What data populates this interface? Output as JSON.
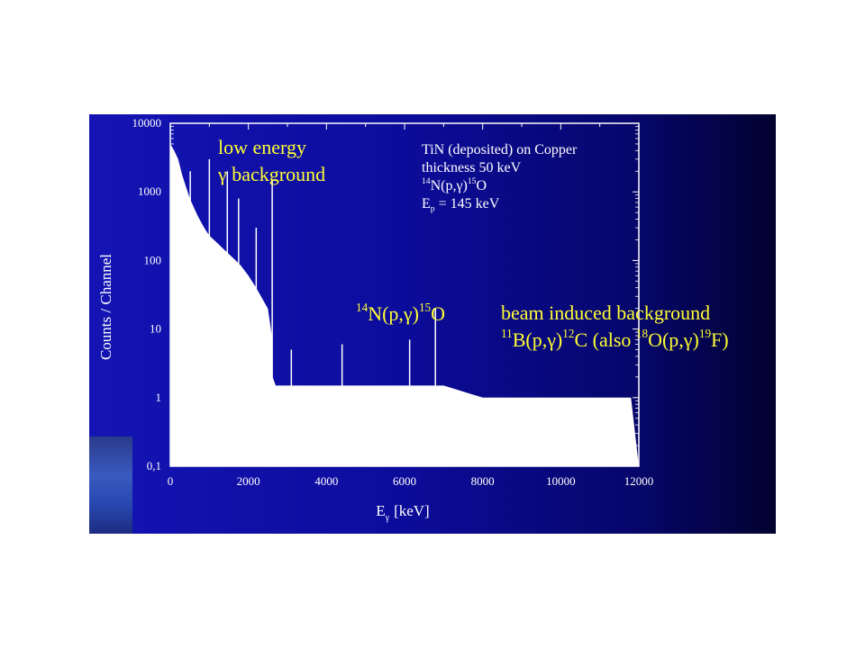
{
  "chart_data": {
    "type": "line",
    "x_axis": {
      "ticks": [
        0,
        2000,
        4000,
        6000,
        8000,
        10000,
        12000
      ],
      "tick_labels": [
        "0",
        "2000",
        "4000",
        "6000",
        "8000",
        "10000",
        "12000"
      ],
      "range": [
        0,
        12000
      ],
      "scale": "linear"
    },
    "y_axis": {
      "ticks": [
        0.1,
        1,
        10,
        100,
        1000,
        10000
      ],
      "tick_labels": [
        "0,1",
        "1",
        "10",
        "100",
        "1000",
        "10000"
      ],
      "range": [
        0.1,
        10000
      ],
      "scale": "log"
    },
    "xlabel_main": "E",
    "xlabel_sub": "γ",
    "xlabel_rest": "[keV]",
    "ylabel": "Counts / Channel",
    "grid": false,
    "series": [
      {
        "x": [
          0,
          100,
          200,
          300,
          400,
          500,
          600,
          700,
          800,
          900,
          1000,
          1200,
          1400,
          1600,
          1800,
          2000,
          2200,
          2400,
          2500,
          2600,
          2620,
          2700,
          3000,
          3500,
          4000,
          5000,
          6000,
          7000,
          8000,
          9000,
          10000,
          11000,
          11800,
          12000
        ],
        "y": [
          5000,
          4000,
          3000,
          1800,
          1200,
          800,
          600,
          450,
          350,
          280,
          230,
          180,
          140,
          110,
          85,
          60,
          40,
          25,
          20,
          8,
          2,
          1.5,
          1.5,
          1.5,
          1.5,
          1.5,
          1.5,
          1.5,
          1,
          1,
          1,
          1,
          1,
          0.1
        ]
      }
    ],
    "peaks": [
      {
        "x": 511,
        "y": 2000
      },
      {
        "x": 1000,
        "y": 3000
      },
      {
        "x": 1460,
        "y": 2000
      },
      {
        "x": 1750,
        "y": 800
      },
      {
        "x": 2200,
        "y": 300
      },
      {
        "x": 2610,
        "y": 1500
      },
      {
        "x": 3100,
        "y": 5
      },
      {
        "x": 4400,
        "y": 6
      },
      {
        "x": 6130,
        "y": 7
      },
      {
        "x": 6790,
        "y": 20
      }
    ]
  },
  "annotations": {
    "low_energy_line1": "low energy",
    "low_energy_gamma": "γ",
    "low_energy_line2": "background",
    "info_line1": "TiN (deposited) on Copper",
    "info_line2": "thickness 50 keV",
    "info_rx_pre": "14",
    "info_rx_mid": "N(p,γ)",
    "info_rx_post_sup": "15",
    "info_rx_post": "O",
    "info_ep_main": "E",
    "info_ep_sub": "p",
    "info_ep_rest": " = 145 keV",
    "peak_label_sup1": "14",
    "peak_label_mid": "N(p,γ)",
    "peak_label_sup2": "15",
    "peak_label_end": "O",
    "beam_line1": "beam induced background",
    "beam_sup1": "11",
    "beam_b": "B(p,γ)",
    "beam_sup2": "12",
    "beam_c": "C (also ",
    "beam_sup3": "18",
    "beam_o": "O(p,γ)",
    "beam_sup4": "19",
    "beam_f": "F)"
  },
  "colors": {
    "background_left": "#1414b4",
    "background_right": "#020230",
    "annotation": "#ffff33",
    "data": "#ffffff",
    "axes": "#ffffff"
  }
}
